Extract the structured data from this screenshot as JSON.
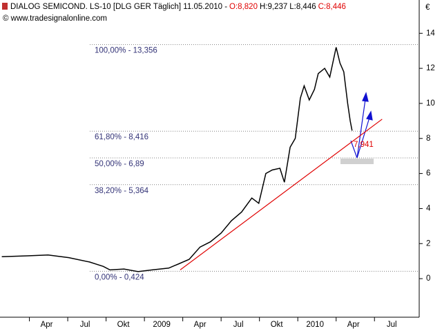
{
  "chart_data": {
    "type": "line",
    "title": "DIALOG SEMICOND.  LS-10 [DLG GER  Täglich] 11.05.2010 -",
    "ohlc": [
      {
        "text": "O:8,820",
        "color": "#e00000"
      },
      {
        "text": "H:9,237",
        "color": "#000000"
      },
      {
        "text": "L:8,446",
        "color": "#000000"
      },
      {
        "text": "C:8,446",
        "color": "#e00000"
      }
    ],
    "source": "© www.tradesignalonline.com",
    "y_unit": "€",
    "xlim": [
      0.7,
      33.5
    ],
    "ylim": [
      -2.2,
      15.9
    ],
    "xticks": [
      {
        "value": 3,
        "label": "Apr"
      },
      {
        "value": 6,
        "label": "Jul"
      },
      {
        "value": 9,
        "label": "Okt"
      },
      {
        "value": 12,
        "label": "2009"
      },
      {
        "value": 15,
        "label": "Apr"
      },
      {
        "value": 18,
        "label": "Jul"
      },
      {
        "value": 21,
        "label": "Okt"
      },
      {
        "value": 24,
        "label": "2010"
      },
      {
        "value": 27,
        "label": "Apr"
      },
      {
        "value": 30,
        "label": "Jul"
      }
    ],
    "yticks": [
      0,
      2,
      4,
      6,
      8,
      10,
      12,
      14
    ],
    "series": [
      {
        "color": "#000000",
        "x": [
          0.84,
          2.84,
          4.46,
          6.08,
          7.7,
          8.78,
          9.3,
          10.4,
          11.5,
          12.6,
          13.9,
          14.7,
          15.5,
          16.35,
          17.16,
          18.0,
          18.8,
          19.6,
          20.4,
          20.95,
          21.5,
          22.0,
          22.6,
          22.95,
          23.4,
          23.8,
          24.2,
          24.5,
          24.9,
          25.3,
          25.6,
          26.1,
          26.5,
          27.0,
          27.3,
          27.6,
          27.9,
          28.1,
          28.25
        ],
        "values": [
          1.25,
          1.3,
          1.35,
          1.2,
          0.95,
          0.7,
          0.5,
          0.55,
          0.4,
          0.5,
          0.6,
          0.85,
          1.1,
          1.8,
          2.1,
          2.6,
          3.3,
          3.8,
          4.6,
          4.3,
          6.0,
          6.2,
          6.3,
          5.5,
          7.5,
          8.0,
          10.3,
          11.0,
          10.2,
          10.8,
          11.7,
          12.0,
          11.5,
          13.2,
          12.3,
          11.8,
          10.0,
          9.0,
          8.446
        ]
      }
    ],
    "fib_levels": [
      {
        "value": 13.356,
        "label": "100,00% - 13,356"
      },
      {
        "value": 8.416,
        "label": "61,80% - 8,416"
      },
      {
        "value": 6.89,
        "label": "50,00% - 6,89"
      },
      {
        "value": 5.364,
        "label": "38,20% - 5,364"
      },
      {
        "value": 0.424,
        "label": "0,00% - 0,424"
      }
    ],
    "trendline": {
      "x": [
        14.8,
        30.6
      ],
      "values": [
        0.5,
        9.1
      ],
      "color": "#e00000"
    },
    "trend_label": "7,941"
  }
}
